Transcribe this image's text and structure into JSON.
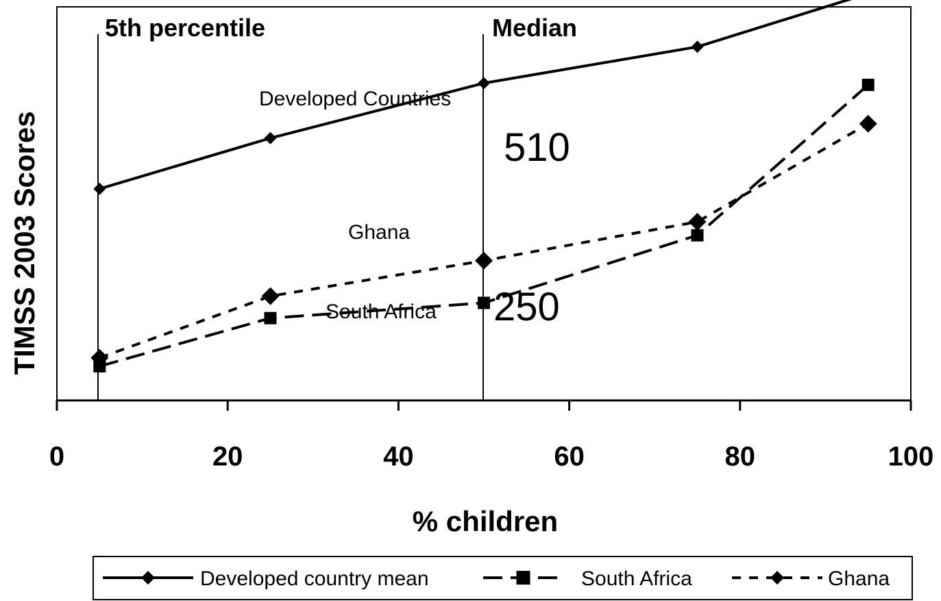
{
  "chart_data": {
    "type": "line",
    "xlabel": "% children",
    "ylabel": "TIMSS 2003 Scores",
    "xlim": [
      0,
      100
    ],
    "x_ticks": [
      "0",
      "20",
      "40",
      "60",
      "80",
      "100"
    ],
    "grid": false,
    "legend_position": "bottom",
    "series": [
      {
        "name": "Developed country mean",
        "style": "solid",
        "marker": "diamond",
        "color": "#000000",
        "x": [
          5,
          25,
          50,
          75,
          95
        ],
        "y": [
          385,
          445,
          510,
          553,
          616
        ]
      },
      {
        "name": "South Africa",
        "style": "long-dash",
        "marker": "square",
        "color": "#000000",
        "x": [
          5,
          25,
          50,
          75,
          95
        ],
        "y": [
          175,
          232,
          250,
          330,
          508
        ]
      },
      {
        "name": "Ghana",
        "style": "short-dash",
        "marker": "diamond",
        "color": "#000000",
        "x": [
          5,
          25,
          50,
          75,
          95
        ],
        "y": [
          185,
          258,
          300,
          346,
          462
        ]
      }
    ],
    "annotations": {
      "vline_5th_label": "5th percentile",
      "vline_median_label": "Median",
      "developed_label": "Developed Countries",
      "ghana_label": "Ghana",
      "south_africa_label": "South Africa",
      "developed_median_value": "510",
      "south_africa_median_value": "250"
    }
  }
}
